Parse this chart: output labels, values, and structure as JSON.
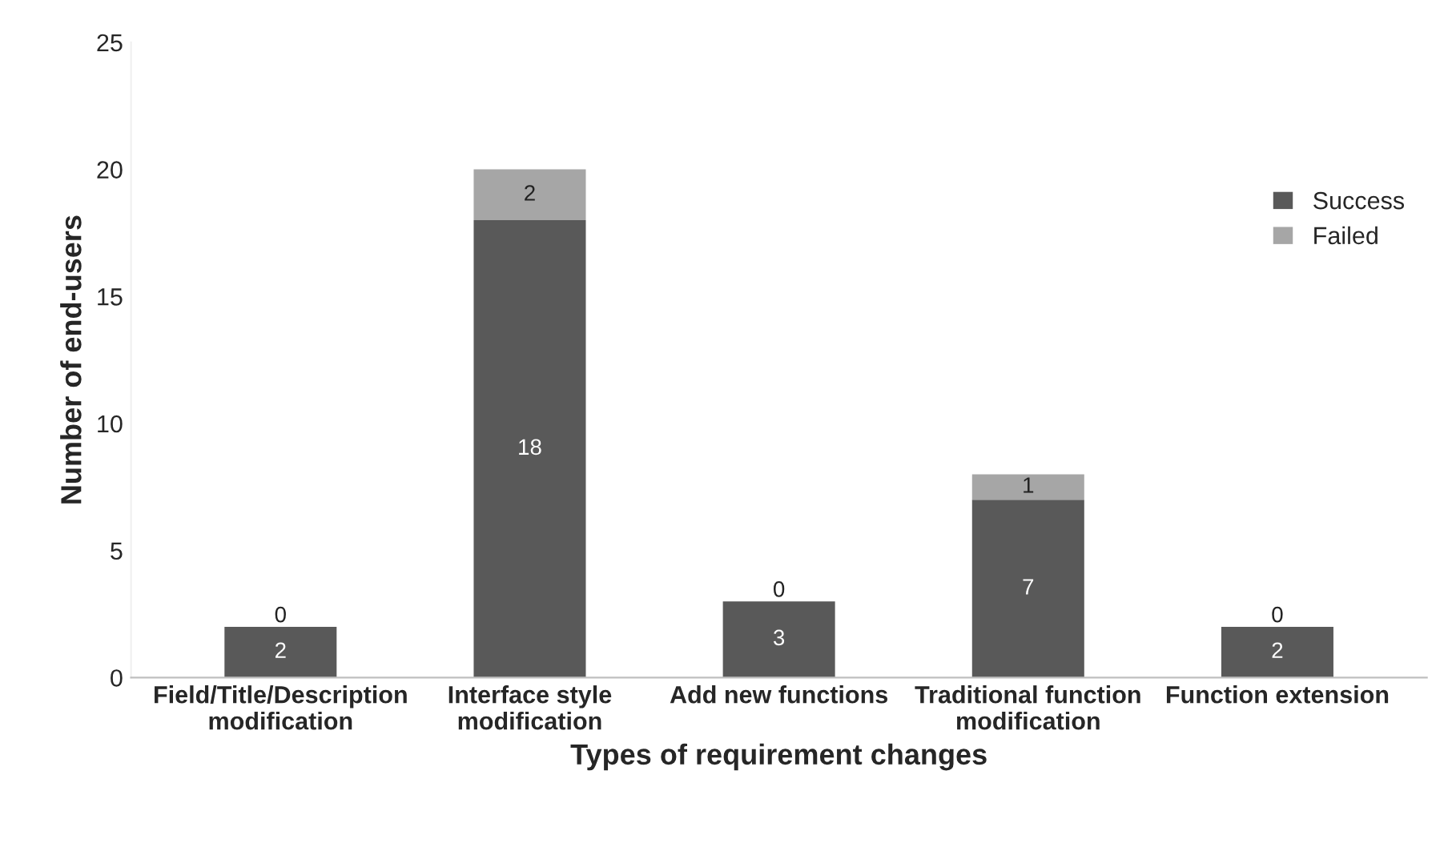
{
  "chart_data": {
    "type": "bar",
    "stacked": true,
    "xlabel": "Types of requirement changes",
    "ylabel": "Number of end-users",
    "categories": [
      "Field/Title/Description\nmodification",
      "Interface style\nmodification",
      "Add new functions",
      "Traditional function\nmodification",
      "Function extension"
    ],
    "series": [
      {
        "name": "Success",
        "color": "#595959",
        "values": [
          2,
          18,
          3,
          7,
          2
        ]
      },
      {
        "name": "Failed",
        "color": "#a6a6a6",
        "values": [
          0,
          2,
          0,
          1,
          0
        ]
      }
    ],
    "ylim": [
      0,
      25
    ],
    "yticks": [
      0,
      5,
      10,
      15,
      20,
      25
    ],
    "grid": false,
    "legend": "right",
    "data_labels": true
  }
}
